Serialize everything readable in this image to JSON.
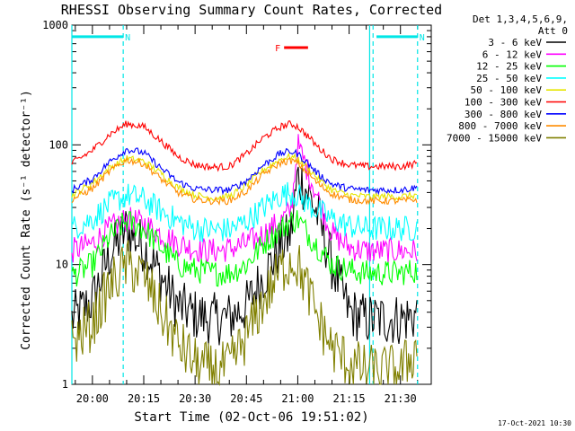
{
  "chart_data": {
    "type": "line",
    "title": "RHESSI Observing Summary Count Rates, Corrected",
    "xlabel": "Start Time (02-Oct-06 19:51:02)",
    "ylabel": "Corrected Count Rate (s⁻¹ detector⁻¹)",
    "y_scale": "log",
    "ylim": [
      1,
      1000
    ],
    "xlim_minutes": [
      -6,
      99
    ],
    "x_tick_labels": [
      "20:00",
      "20:15",
      "20:30",
      "20:45",
      "21:00",
      "21:15",
      "21:30"
    ],
    "x_tick_minutes": [
      0,
      15,
      30,
      45,
      60,
      75,
      90
    ],
    "y_tick_labels": [
      "1",
      "10",
      "100",
      "1000"
    ],
    "y_tick_values": [
      1,
      10,
      100,
      1000
    ],
    "legend_header": [
      "Det 1,3,4,5,6,9,",
      "Att 0"
    ],
    "legend_position": "right-outside",
    "flags": [
      {
        "name": "N",
        "color": "#00e6e6",
        "start": -6,
        "end": 9,
        "level": 800
      },
      {
        "name": "N",
        "color": "#00e6e6",
        "start": 83,
        "end": 95,
        "level": 800
      },
      {
        "name": "F",
        "color": "#ff0000",
        "start": 56,
        "end": 63,
        "level": 650
      }
    ],
    "vlines": [
      {
        "minute": 9,
        "style": "dashed",
        "color": "#00e6e6"
      },
      {
        "minute": 81,
        "style": "solid",
        "color": "#00e6e6"
      },
      {
        "minute": 82,
        "style": "dashed",
        "color": "#00e6e6"
      },
      {
        "minute": 95,
        "style": "dashed",
        "color": "#00e6e6"
      },
      {
        "minute": -6,
        "style": "solid",
        "color": "#00e6e6"
      }
    ],
    "x_minutes": [
      -6,
      0,
      5,
      10,
      15,
      20,
      25,
      30,
      35,
      40,
      45,
      50,
      55,
      58,
      60,
      63,
      66,
      70,
      75,
      80,
      85,
      90,
      95
    ],
    "series": [
      {
        "name": "3 - 6 keV",
        "color": "#000000",
        "values": [
          3.5,
          5,
          12,
          20,
          14,
          8,
          4.5,
          3.8,
          3.5,
          3.6,
          4.5,
          8,
          14,
          18,
          55,
          40,
          25,
          10,
          4,
          3.5,
          3.5,
          3.5,
          3.8
        ]
      },
      {
        "name": "6 - 12 keV",
        "color": "#ff00ff",
        "values": [
          13,
          15,
          20,
          24,
          22,
          18,
          15,
          13.5,
          13,
          13.5,
          15,
          18,
          23,
          28,
          100,
          60,
          35,
          18,
          14,
          13,
          13,
          13,
          13
        ]
      },
      {
        "name": "12 - 25 keV",
        "color": "#00ff00",
        "values": [
          8,
          10,
          17,
          23,
          20,
          14,
          10,
          9,
          8.5,
          8.5,
          10,
          15,
          20,
          23,
          24,
          18,
          14,
          10,
          9,
          8.5,
          8.5,
          8.5,
          9
        ]
      },
      {
        "name": "25 - 50 keV",
        "color": "#00ffff",
        "values": [
          20,
          24,
          32,
          38,
          35,
          28,
          23,
          20,
          19.5,
          19.5,
          23,
          30,
          38,
          40,
          38,
          32,
          28,
          24,
          21,
          20,
          20,
          20,
          20
        ]
      },
      {
        "name": "50 - 100 keV",
        "color": "#e6e600",
        "values": [
          38,
          48,
          64,
          77,
          73,
          58,
          44,
          38,
          36,
          37,
          46,
          62,
          76,
          80,
          76,
          64,
          52,
          42,
          38,
          37,
          37,
          37,
          38
        ]
      },
      {
        "name": "100 - 300 keV",
        "color": "#ff0000",
        "values": [
          70,
          90,
          122,
          150,
          142,
          108,
          80,
          68,
          65,
          66,
          84,
          115,
          142,
          150,
          142,
          118,
          95,
          76,
          68,
          66,
          66,
          66,
          70
        ]
      },
      {
        "name": "300 - 800 keV",
        "color": "#0000ff",
        "values": [
          42,
          52,
          72,
          92,
          86,
          64,
          49,
          43,
          42,
          42,
          50,
          68,
          85,
          88,
          84,
          70,
          57,
          47,
          43,
          42,
          42,
          42,
          44
        ]
      },
      {
        "name": "800 - 7000 keV",
        "color": "#ff8c00",
        "values": [
          35,
          43,
          60,
          75,
          70,
          52,
          40,
          35,
          34,
          34,
          41,
          57,
          71,
          74,
          70,
          58,
          47,
          39,
          35,
          34,
          34,
          34,
          35
        ]
      },
      {
        "name": "7000 - 15000 keV",
        "color": "#808000",
        "values": [
          2.2,
          3.2,
          6.5,
          10,
          8,
          4,
          2.2,
          1.5,
          1.3,
          1.4,
          2.5,
          5,
          9,
          11,
          10,
          6,
          3.5,
          2,
          1.5,
          1.3,
          1.3,
          1.3,
          2
        ]
      }
    ]
  },
  "footer": {
    "timestamp": "17-Oct-2021 10:30"
  }
}
